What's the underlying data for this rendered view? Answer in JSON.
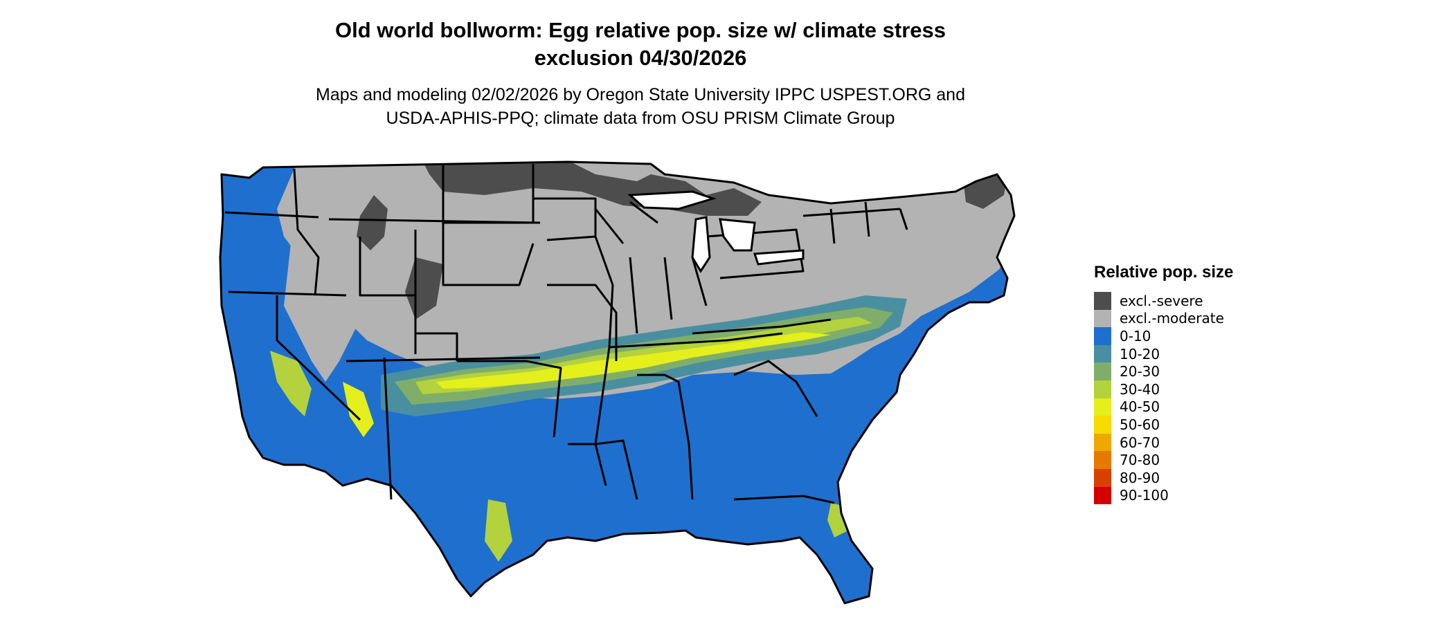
{
  "title": {
    "line1": "Old world bollworm: Egg relative pop. size w/ climate stress",
    "line2": "exclusion 04/30/2026"
  },
  "subtitle": {
    "line1": "Maps and modeling 02/02/2026 by Oregon State University IPPC USPEST.ORG and",
    "line2": "USDA-APHIS-PPQ; climate data from OSU PRISM Climate Group"
  },
  "legend": {
    "title": "Relative pop. size",
    "items": [
      {
        "label": "excl.-severe",
        "color": "#4d4d4d"
      },
      {
        "label": "excl.-moderate",
        "color": "#b3b3b3"
      },
      {
        "label": "0-10",
        "color": "#1f6fcf"
      },
      {
        "label": "10-20",
        "color": "#4a8fa0"
      },
      {
        "label": "20-30",
        "color": "#7fae6a"
      },
      {
        "label": "30-40",
        "color": "#b3d23d"
      },
      {
        "label": "40-50",
        "color": "#e4ef1c"
      },
      {
        "label": "50-60",
        "color": "#f6dc00"
      },
      {
        "label": "60-70",
        "color": "#f0a800"
      },
      {
        "label": "70-80",
        "color": "#e67a00"
      },
      {
        "label": "80-90",
        "color": "#d94000"
      },
      {
        "label": "90-100",
        "color": "#d40000"
      }
    ]
  },
  "map": {
    "region": "conterminous-united-states",
    "colors": {
      "state_border": "#000000",
      "water": "#ffffff"
    }
  }
}
